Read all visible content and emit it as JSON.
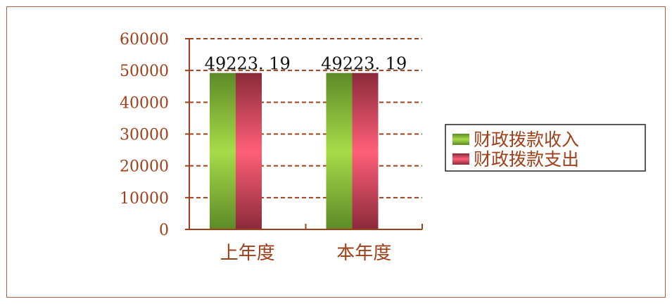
{
  "chart_data": {
    "type": "bar",
    "categories": [
      "上年度",
      "本年度"
    ],
    "series": [
      {
        "name": "财政拨款收入",
        "values": [
          49223.19,
          49223.19
        ],
        "color": "#7fb22f"
      },
      {
        "name": "财政拨款支出",
        "values": [
          49223.19,
          49223.19
        ],
        "color": "#e24a63"
      }
    ],
    "data_labels": [
      "49223. 19",
      "49223. 19"
    ],
    "y_ticks": [
      "0",
      "10000",
      "20000",
      "30000",
      "40000",
      "50000",
      "60000"
    ],
    "ylim": [
      0,
      60000
    ],
    "grid": true,
    "legend_position": "right",
    "axis_color": "#a0401a",
    "grid_color": "#a0401a"
  }
}
